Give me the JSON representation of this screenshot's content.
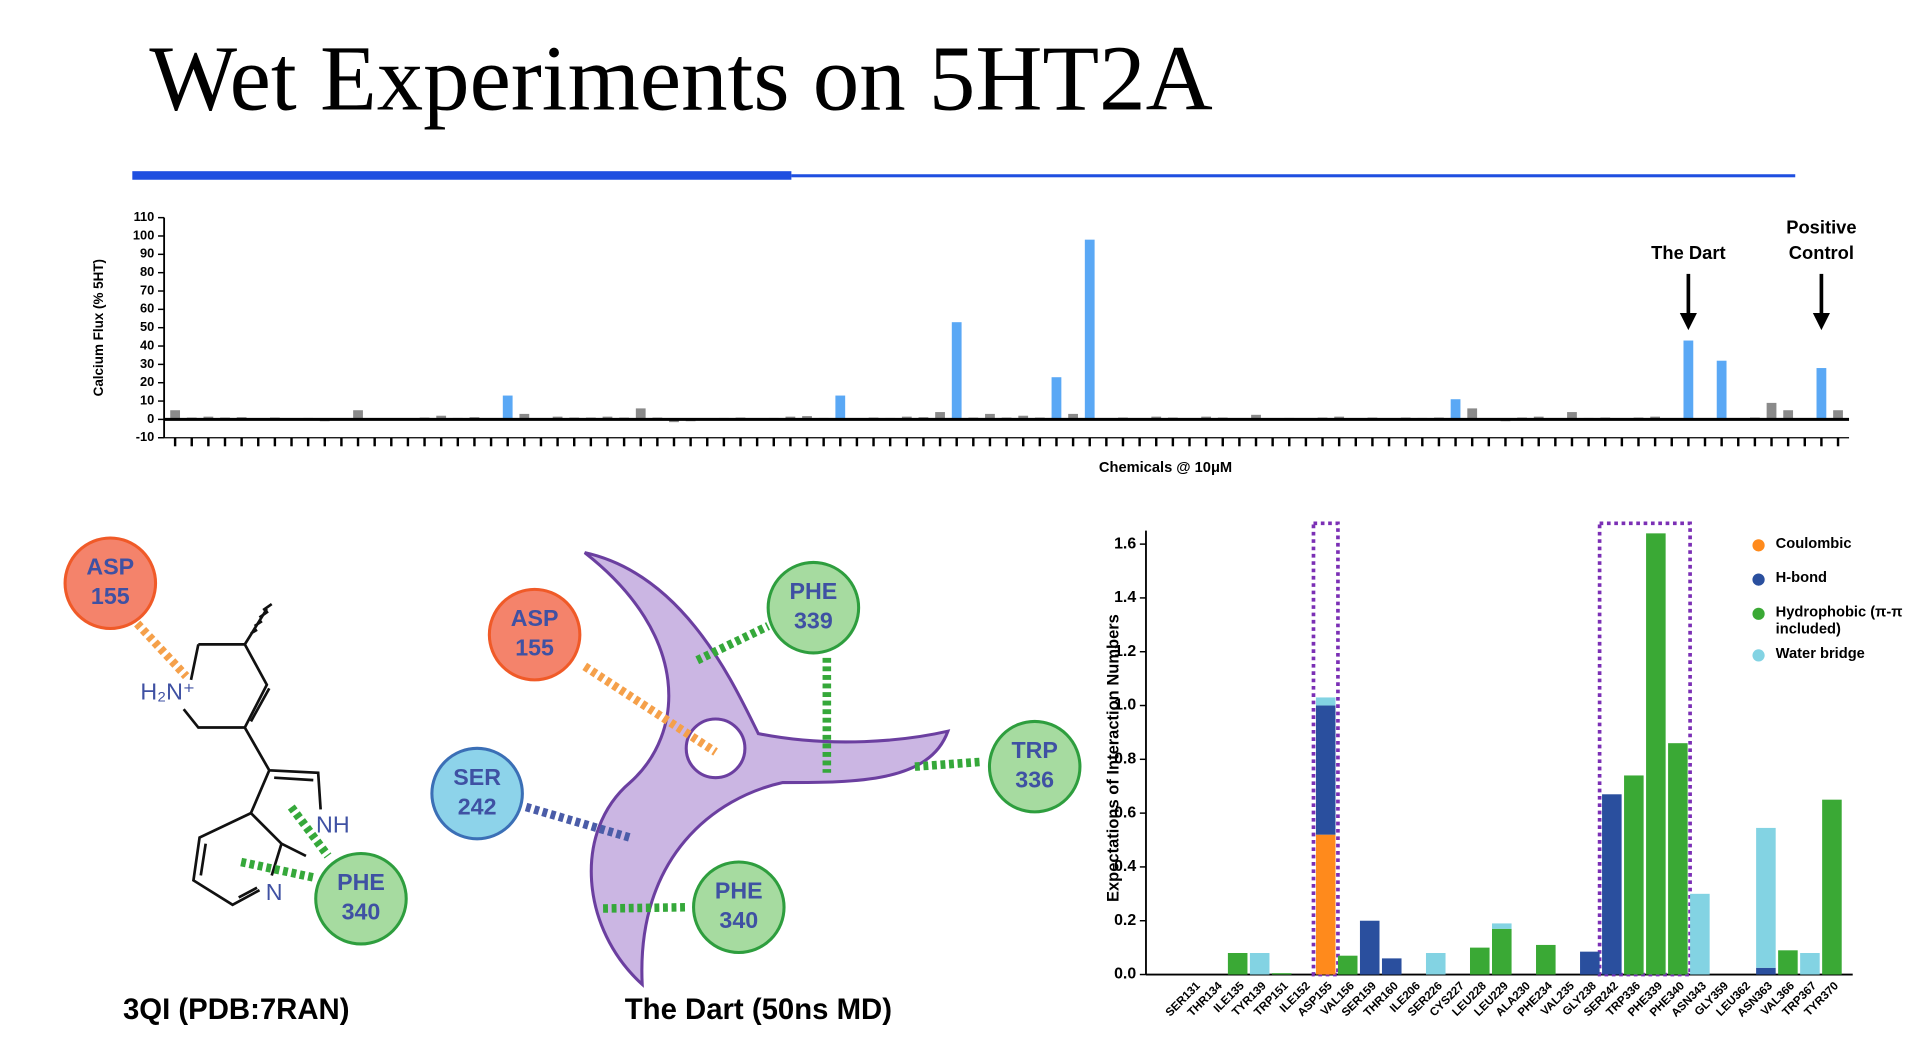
{
  "title": "Wet Experiments on 5HT2A",
  "chart_data": [
    {
      "type": "bar",
      "ylabel": "Calcium Flux (% 5HT)",
      "xlabel": "Chemicals @ 10μM",
      "categories": [
        null,
        null,
        null,
        null,
        null,
        null,
        null,
        null,
        null,
        null,
        null,
        null,
        null,
        null,
        null,
        null,
        null,
        null,
        null,
        null,
        null,
        null,
        null,
        null,
        null,
        null,
        null,
        null,
        null,
        null,
        null,
        null,
        null,
        null,
        null,
        null,
        null,
        null,
        null,
        null,
        null,
        null,
        null,
        null,
        null,
        null,
        null,
        null,
        null,
        null,
        null,
        null,
        null,
        null,
        null,
        null,
        null,
        null,
        null,
        null,
        null,
        null,
        null,
        null,
        null,
        null,
        null,
        null,
        null,
        null,
        null,
        null,
        null,
        null,
        null,
        null,
        null,
        null,
        null,
        null,
        null,
        null,
        null,
        null,
        null,
        null,
        null,
        null,
        null,
        null,
        null,
        null,
        null,
        null,
        null,
        null,
        null,
        null,
        null,
        null,
        null
      ],
      "values": [
        5,
        1,
        1.5,
        1,
        1.2,
        0.5,
        1,
        0.5,
        0.8,
        -1,
        0.5,
        5,
        0.5,
        0.3,
        -0.5,
        1,
        2,
        0.8,
        1.2,
        0.5,
        13,
        3,
        0.5,
        1.5,
        1,
        1,
        1.5,
        1,
        6,
        1,
        -1.5,
        -1,
        0.5,
        0.8,
        1,
        0.5,
        0.8,
        1.5,
        1.8,
        0.8,
        13,
        0.5,
        1,
        0.8,
        1.5,
        1.2,
        4,
        53,
        1,
        3,
        1,
        2,
        1,
        23,
        3,
        98,
        0.5,
        1,
        0.5,
        1.5,
        1,
        0.5,
        1.5,
        1,
        0.5,
        2.5,
        0.5,
        0.8,
        0.5,
        1,
        1.5,
        0.5,
        1,
        0.5,
        1,
        0.8,
        1,
        11,
        6,
        0.5,
        -1,
        1,
        1.5,
        0.5,
        4,
        0.8,
        1,
        0.5,
        1,
        1.5,
        0.5,
        43,
        0.5,
        32,
        0.3,
        1,
        9,
        5,
        0.5,
        28,
        5
      ],
      "colors": [
        "#8a8a8a",
        "#8a8a8a",
        "#8a8a8a",
        "#8a8a8a",
        "#8a8a8a",
        "#8a8a8a",
        "#8a8a8a",
        "#8a8a8a",
        "#8a8a8a",
        "#8a8a8a",
        "#8a8a8a",
        "#8a8a8a",
        "#8a8a8a",
        "#8a8a8a",
        "#8a8a8a",
        "#8a8a8a",
        "#8a8a8a",
        "#8a8a8a",
        "#8a8a8a",
        "#8a8a8a",
        "#5aa8f5",
        "#8a8a8a",
        "#8a8a8a",
        "#8a8a8a",
        "#8a8a8a",
        "#8a8a8a",
        "#8a8a8a",
        "#8a8a8a",
        "#8a8a8a",
        "#8a8a8a",
        "#8a8a8a",
        "#8a8a8a",
        "#8a8a8a",
        "#8a8a8a",
        "#8a8a8a",
        "#8a8a8a",
        "#8a8a8a",
        "#8a8a8a",
        "#8a8a8a",
        "#8a8a8a",
        "#5aa8f5",
        "#8a8a8a",
        "#8a8a8a",
        "#8a8a8a",
        "#8a8a8a",
        "#8a8a8a",
        "#8a8a8a",
        "#5aa8f5",
        "#8a8a8a",
        "#8a8a8a",
        "#8a8a8a",
        "#8a8a8a",
        "#8a8a8a",
        "#5aa8f5",
        "#8a8a8a",
        "#5aa8f5",
        "#8a8a8a",
        "#8a8a8a",
        "#8a8a8a",
        "#8a8a8a",
        "#8a8a8a",
        "#8a8a8a",
        "#8a8a8a",
        "#8a8a8a",
        "#8a8a8a",
        "#8a8a8a",
        "#8a8a8a",
        "#8a8a8a",
        "#8a8a8a",
        "#8a8a8a",
        "#8a8a8a",
        "#8a8a8a",
        "#8a8a8a",
        "#8a8a8a",
        "#8a8a8a",
        "#8a8a8a",
        "#8a8a8a",
        "#5aa8f5",
        "#8a8a8a",
        "#8a8a8a",
        "#8a8a8a",
        "#8a8a8a",
        "#8a8a8a",
        "#8a8a8a",
        "#8a8a8a",
        "#8a8a8a",
        "#8a8a8a",
        "#8a8a8a",
        "#8a8a8a",
        "#8a8a8a",
        "#8a8a8a",
        "#5aa8f5",
        "#8a8a8a",
        "#5aa8f5",
        "#8a8a8a",
        "#8a8a8a",
        "#8a8a8a",
        "#8a8a8a",
        "#8a8a8a",
        "#5aa8f5",
        "#8a8a8a"
      ],
      "ylim": [
        -10,
        110
      ],
      "yticks": [
        -10,
        0,
        10,
        20,
        30,
        40,
        50,
        60,
        70,
        80,
        90,
        100,
        110
      ],
      "annotations": [
        {
          "text": "The Dart",
          "x": 91
        },
        {
          "text": "Positive Control",
          "x": 99
        }
      ]
    },
    {
      "type": "bar",
      "stacked": true,
      "ylabel": "Expectations of Interaction Numbers",
      "categories": [
        "SER131",
        "THR134",
        "ILE135",
        "TYR139",
        "TRP151",
        "ILE152",
        "ASP155",
        "VAL156",
        "SER159",
        "THR160",
        "ILE206",
        "SER226",
        "CYS227",
        "LEU228",
        "LEU229",
        "ALA230",
        "PHE234",
        "VAL235",
        "GLY238",
        "SER242",
        "TRP336",
        "PHE339",
        "PHE340",
        "ASN343",
        "GLY359",
        "LEU362",
        "ASN363",
        "VAL366",
        "TRP367",
        "TYR370"
      ],
      "series": [
        {
          "name": "Coulombic",
          "color": "#ff8a1c",
          "values": [
            0,
            0,
            0,
            0,
            0,
            0,
            0.52,
            0,
            0,
            0,
            0,
            0,
            0,
            0,
            0,
            0,
            0,
            0,
            0,
            0,
            0,
            0,
            0,
            0,
            0,
            0,
            0,
            0,
            0,
            0
          ]
        },
        {
          "name": "H-bond",
          "color": "#2a4f9e",
          "values": [
            0,
            0,
            0,
            0,
            0,
            0,
            0.48,
            0,
            0.2,
            0.06,
            0,
            0,
            0,
            0,
            0,
            0,
            0,
            0,
            0.085,
            0.67,
            0,
            0,
            0,
            0,
            0,
            0,
            0.025,
            0,
            0,
            0
          ]
        },
        {
          "name": "Hydrophobic (π-π included)",
          "color": "#3aa935",
          "values": [
            0,
            0,
            0.08,
            0,
            0.005,
            0,
            0,
            0.07,
            0,
            0,
            0,
            0,
            0,
            0.1,
            0.17,
            0,
            0.11,
            0,
            0,
            0,
            0.74,
            1.64,
            0.86,
            0,
            0,
            0,
            0,
            0.09,
            0,
            0.65
          ]
        },
        {
          "name": "Water bridge",
          "color": "#83d3e3",
          "values": [
            0,
            0,
            0,
            0.08,
            0,
            0,
            0.03,
            0,
            0,
            0,
            0,
            0.08,
            0,
            0,
            0.02,
            0,
            0,
            0,
            0,
            0,
            0,
            0,
            0,
            0.3,
            0,
            0,
            0.52,
            0,
            0.08,
            0
          ]
        }
      ],
      "ylim": [
        0,
        1.65
      ],
      "yticks": [
        {
          "value": 0,
          "label": "0.0"
        },
        0.2,
        0.4,
        0.6,
        0.8,
        {
          "value": 1,
          "label": "1.0"
        },
        1.2,
        1.4,
        1.6
      ]
    }
  ],
  "diagrams": [
    {
      "caption": "3QI (PDB:7RAN)",
      "atoms": [
        "H₂N⁺",
        "NH",
        "N"
      ],
      "nodes": [
        {
          "name": "ASP",
          "number": "155"
        },
        {
          "name": "PHE",
          "number": "340"
        }
      ]
    },
    {
      "caption": "The Dart (50ns MD)",
      "nodes": [
        {
          "name": "ASP",
          "number": "155"
        },
        {
          "name": "PHE",
          "number": "339"
        },
        {
          "name": "TRP",
          "number": "336"
        },
        {
          "name": "SER",
          "number": "242"
        },
        {
          "name": "PHE",
          "number": "340"
        }
      ]
    }
  ]
}
